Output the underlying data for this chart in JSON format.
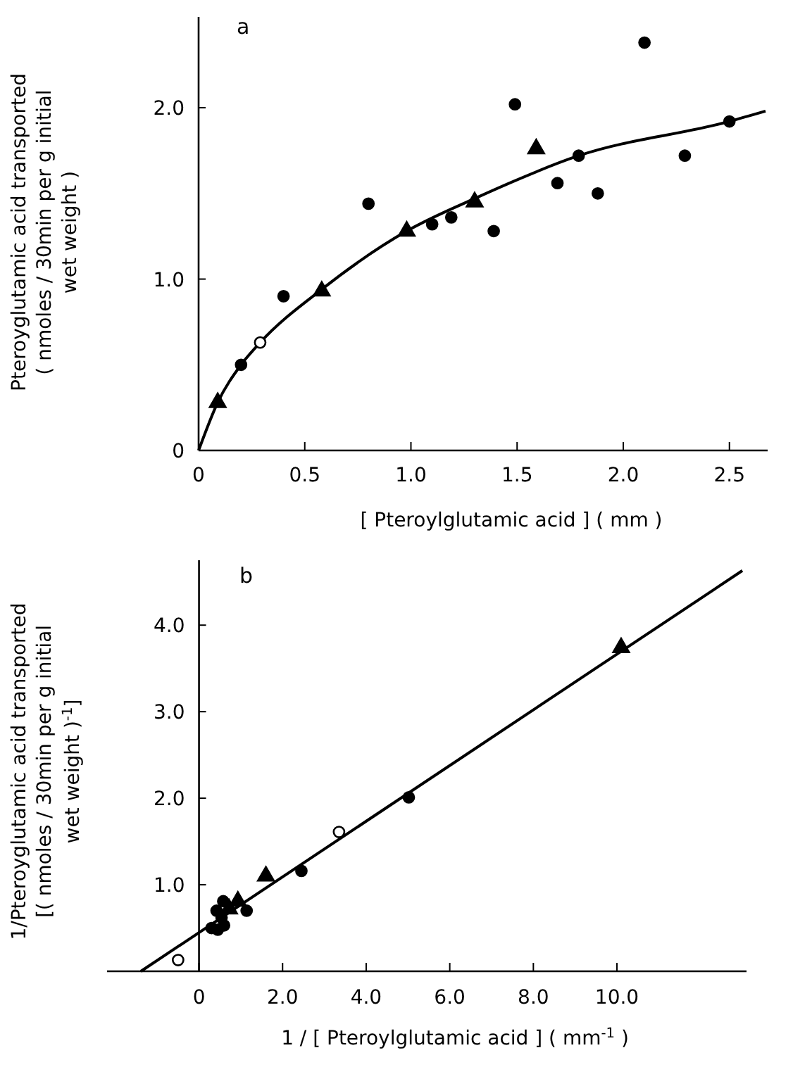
{
  "chart_data": [
    {
      "type": "scatter",
      "title": "a",
      "xlabel": "[ Pteroylglutamic acid ] ( mm )",
      "ylabel": "Pteroyglutamic acid transported\n( nmoles / 30min per g initial\nwet weight )",
      "xlim": [
        0,
        2.68
      ],
      "ylim": [
        0,
        2.53
      ],
      "xticks": [
        0,
        {
          "value": 0.5,
          "label": "0.5"
        },
        {
          "value": 1,
          "label": "1.0"
        },
        {
          "value": 1.5,
          "label": "1.5"
        },
        {
          "value": 2,
          "label": "2.0"
        },
        {
          "value": 2.5,
          "label": "2.5"
        }
      ],
      "yticks": [
        0,
        {
          "value": 1,
          "label": "1.0"
        },
        {
          "value": 2,
          "label": "2.0"
        }
      ],
      "series": [
        {
          "type": "line",
          "color": "#000000",
          "x": [
            0,
            0.09,
            0.2,
            0.29,
            0.58,
            0.98,
            1.3,
            1.79,
            2.5,
            2.67
          ],
          "values": [
            0,
            0.28,
            0.5,
            0.63,
            0.94,
            1.28,
            1.47,
            1.72,
            1.92,
            1.98
          ]
        },
        {
          "color": "#000000",
          "marker": "circle",
          "x": [
            0.2,
            0.4,
            0.8,
            1.1,
            1.19,
            1.39,
            1.49,
            1.69,
            1.79,
            1.88,
            2.1,
            2.29,
            2.5
          ],
          "values": [
            0.5,
            0.9,
            1.44,
            1.32,
            1.36,
            1.28,
            2.02,
            1.56,
            1.72,
            1.5,
            2.38,
            1.72,
            1.92
          ]
        },
        {
          "color": "#ffffff",
          "marker": "circle",
          "x": [
            0.29
          ],
          "values": [
            0.63
          ]
        },
        {
          "color": "#000000",
          "marker": "triangle",
          "x": [
            0.09,
            0.58,
            0.98,
            1.3,
            1.59
          ],
          "values": [
            0.28,
            0.93,
            1.28,
            1.45,
            1.76
          ]
        }
      ]
    },
    {
      "type": "scatter",
      "title": "b",
      "xlabel": "1 / [ Pteroylglutamic acid ] ( mm$^{-1}$ )",
      "ylabel": "1/Pteroyglutamic acid transported\n[( nmoles / 30min per g initial\nwet weight )$^{-1}$]",
      "xlim": [
        -2.2,
        13.1
      ],
      "ylim": [
        0,
        4.75
      ],
      "xticks": [
        0,
        {
          "value": 2,
          "label": "2.0"
        },
        {
          "value": 4,
          "label": "4.0"
        },
        {
          "value": 6,
          "label": "6.0"
        },
        {
          "value": 8,
          "label": "8.0"
        },
        {
          "value": 10,
          "label": "10.0"
        }
      ],
      "yticks": [
        {
          "value": 1,
          "label": "1.0"
        },
        {
          "value": 2,
          "label": "2.0"
        },
        {
          "value": 3,
          "label": "3.0"
        },
        {
          "value": 4,
          "label": "4.0"
        }
      ],
      "series": [
        {
          "type": "line",
          "color": "#000000",
          "x": [
            -1.39,
            13
          ],
          "values": [
            0,
            4.63
          ]
        },
        {
          "color": "#000000",
          "marker": "circle",
          "x": [
            5.02,
            2.45,
            1.14,
            0.58,
            0.42,
            0.54,
            0.6,
            0.45,
            0.3
          ],
          "values": [
            2.01,
            1.16,
            0.7,
            0.81,
            0.7,
            0.62,
            0.53,
            0.48,
            0.5
          ]
        },
        {
          "color": "#ffffff",
          "marker": "circle",
          "x": [
            3.35,
            -0.5
          ],
          "values": [
            1.61,
            0.13
          ]
        },
        {
          "color": "#000000",
          "marker": "triangle",
          "x": [
            10.1,
            1.6,
            0.93,
            0.72
          ],
          "values": [
            3.74,
            1.1,
            0.81,
            0.72
          ]
        }
      ]
    }
  ]
}
